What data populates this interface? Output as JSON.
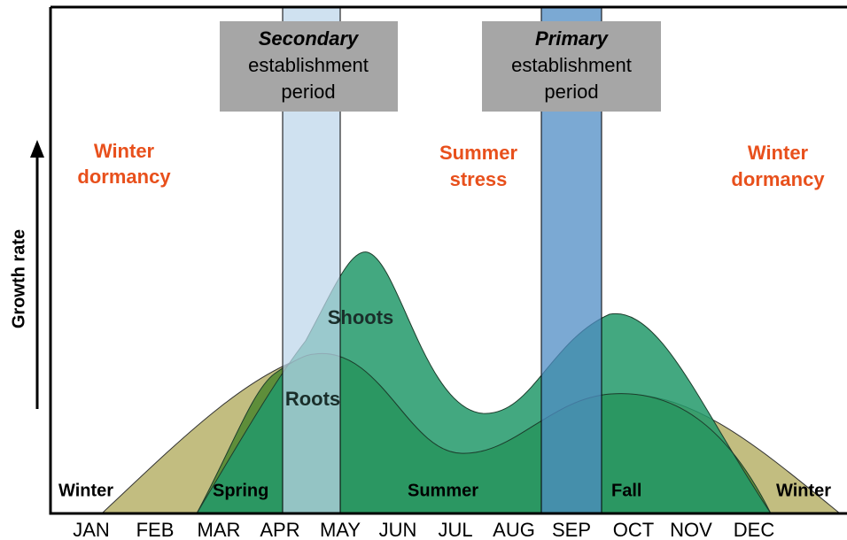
{
  "y_axis_label": "Growth rate",
  "periods": {
    "secondary": {
      "emphasis": "Secondary",
      "line2": "establishment",
      "line3": "period"
    },
    "primary": {
      "emphasis": "Primary",
      "line2": "establishment",
      "line3": "period"
    }
  },
  "stress_labels": {
    "winter_left": [
      "Winter",
      "dormancy"
    ],
    "summer": [
      "Summer",
      "stress"
    ],
    "winter_right": [
      "Winter",
      "dormancy"
    ]
  },
  "curve_labels": {
    "shoots": "Shoots",
    "roots": "Roots"
  },
  "season_labels": [
    "Winter",
    "Spring",
    "Summer",
    "Fall",
    "Winter"
  ],
  "months": [
    "JAN",
    "FEB",
    "MAR",
    "APR",
    "MAY",
    "JUN",
    "JUL",
    "AUG",
    "SEP",
    "OCT",
    "NOV",
    "DEC"
  ]
}
